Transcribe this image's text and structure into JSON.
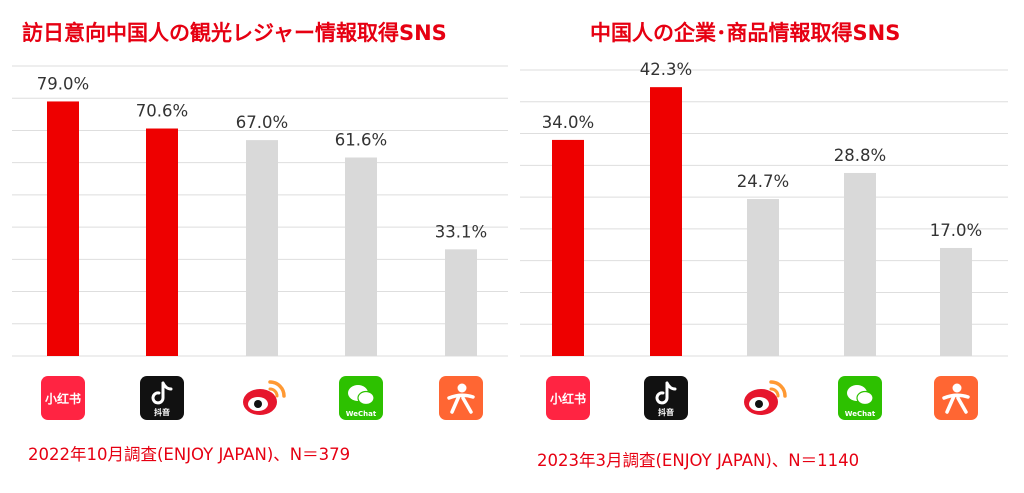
{
  "colors": {
    "highlight": "#ee0000",
    "neutral": "#d9d9d9",
    "title": "#e60012",
    "grid": "#dedede",
    "label": "#333333"
  },
  "platform_icons": [
    {
      "name": "xiaohongshu-icon",
      "text": "小红书",
      "bg": "#ff2442"
    },
    {
      "name": "douyin-icon",
      "text": "抖音",
      "bg": "#111111"
    },
    {
      "name": "weibo-icon",
      "text": "",
      "bg": "#ffffff"
    },
    {
      "name": "wechat-icon",
      "text": "WeChat",
      "bg": "#2dc100"
    },
    {
      "name": "dianping-icon",
      "text": "",
      "bg": "#ff6633"
    }
  ],
  "chart_data": [
    {
      "type": "bar",
      "title": "訪日意向中国人の観光レジャー情報取得SNS",
      "categories": [
        "小红书",
        "抖音",
        "Weibo",
        "WeChat",
        "大众点评"
      ],
      "values": [
        79.0,
        70.6,
        67.0,
        61.6,
        33.1
      ],
      "value_labels": [
        "79.0%",
        "70.6%",
        "67.0%",
        "61.6%",
        "33.1%"
      ],
      "highlighted": [
        true,
        true,
        false,
        false,
        false
      ],
      "ylim": [
        0,
        90
      ],
      "grid": true,
      "footnote": "2022年10月調査(ENJOY JAPAN)、N＝379"
    },
    {
      "type": "bar",
      "title": "中国人の企業･商品情報取得SNS",
      "categories": [
        "小红书",
        "抖音",
        "Weibo",
        "WeChat",
        "大众点评"
      ],
      "values": [
        34.0,
        42.3,
        24.7,
        28.8,
        17.0
      ],
      "value_labels": [
        "34.0%",
        "42.3%",
        "24.7%",
        "28.8%",
        "17.0%"
      ],
      "highlighted": [
        true,
        true,
        false,
        false,
        false
      ],
      "ylim": [
        0,
        45
      ],
      "grid": true,
      "footnote": "2023年3月調査(ENJOY JAPAN)、N＝1140"
    }
  ]
}
